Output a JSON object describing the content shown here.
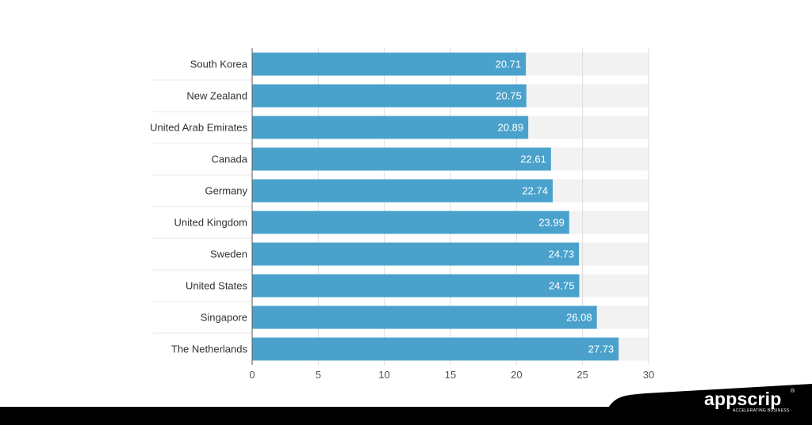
{
  "chart_data": {
    "type": "bar",
    "orientation": "horizontal",
    "categories": [
      "South Korea",
      "New Zealand",
      "United Arab Emirates",
      "Canada",
      "Germany",
      "United Kingdom",
      "Sweden",
      "United States",
      "Singapore",
      "The Netherlands"
    ],
    "values": [
      20.71,
      20.75,
      20.89,
      22.61,
      22.74,
      23.99,
      24.73,
      24.75,
      26.08,
      27.73
    ],
    "value_labels": [
      "20.71",
      "20.75",
      "20.89",
      "22.61",
      "22.74",
      "23.99",
      "24.73",
      "24.75",
      "26.08",
      "27.73"
    ],
    "xlim": [
      0,
      30
    ],
    "xticks": [
      0,
      5,
      10,
      15,
      20,
      25,
      30
    ],
    "xtick_labels": [
      "0",
      "5",
      "10",
      "15",
      "20",
      "25",
      "30"
    ],
    "title": "",
    "xlabel": "",
    "ylabel": "",
    "grid": true,
    "legend": "none",
    "bar_color": "#4aa2cc",
    "track_color": "#f2f2f2"
  },
  "branding": {
    "logo_text": "appscrip",
    "logo_reg": "®",
    "tagline": "ACCELERATING BUSINESS"
  }
}
